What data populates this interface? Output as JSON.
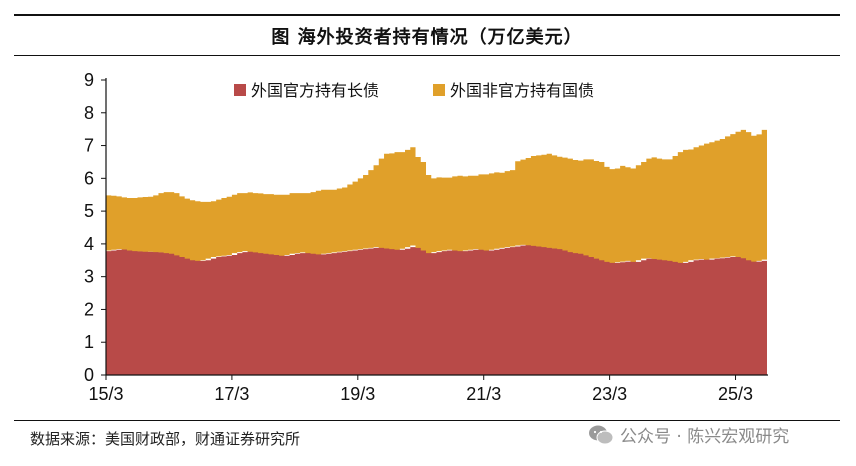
{
  "page": {
    "title": "图  海外投资者持有情况（万亿美元）"
  },
  "footer": {
    "source": "数据来源：美国财政部，财通证券研究所",
    "watermark": "公众号 · 陈兴宏观研究"
  },
  "chart_data": {
    "type": "area",
    "stacked": true,
    "title": "",
    "xlabel": "",
    "ylabel": "",
    "ylim": [
      0,
      9
    ],
    "yticks": [
      0,
      1,
      2,
      3,
      4,
      5,
      6,
      7,
      8,
      9
    ],
    "grid": false,
    "legend_position": "top",
    "x_tick_labels": [
      "15/3",
      "17/3",
      "19/3",
      "21/3",
      "23/3",
      "25/3"
    ],
    "x_tick_index": [
      0,
      24,
      48,
      72,
      96,
      120
    ],
    "series": [
      {
        "name": "外国官方持有长债",
        "color": "#B84A48",
        "values": [
          3.78,
          3.8,
          3.82,
          3.84,
          3.83,
          3.8,
          3.78,
          3.77,
          3.76,
          3.76,
          3.75,
          3.74,
          3.72,
          3.7,
          3.65,
          3.6,
          3.55,
          3.5,
          3.48,
          3.5,
          3.55,
          3.6,
          3.62,
          3.64,
          3.66,
          3.72,
          3.75,
          3.78,
          3.76,
          3.74,
          3.72,
          3.7,
          3.68,
          3.66,
          3.64,
          3.66,
          3.7,
          3.72,
          3.74,
          3.72,
          3.7,
          3.68,
          3.7,
          3.72,
          3.74,
          3.76,
          3.78,
          3.8,
          3.82,
          3.84,
          3.86,
          3.88,
          3.9,
          3.88,
          3.86,
          3.84,
          3.82,
          3.85,
          3.9,
          3.95,
          3.88,
          3.8,
          3.72,
          3.75,
          3.78,
          3.8,
          3.82,
          3.8,
          3.78,
          3.8,
          3.82,
          3.84,
          3.82,
          3.8,
          3.82,
          3.85,
          3.88,
          3.9,
          3.92,
          3.95,
          3.97,
          3.96,
          3.94,
          3.92,
          3.9,
          3.88,
          3.86,
          3.84,
          3.8,
          3.75,
          3.72,
          3.7,
          3.65,
          3.6,
          3.55,
          3.5,
          3.45,
          3.42,
          3.44,
          3.46,
          3.48,
          3.45,
          3.5,
          3.55,
          3.56,
          3.54,
          3.52,
          3.5,
          3.48,
          3.45,
          3.42,
          3.45,
          3.5,
          3.52,
          3.54,
          3.52,
          3.55,
          3.56,
          3.58,
          3.6,
          3.62,
          3.6,
          3.56,
          3.5,
          3.46,
          3.48,
          3.52
        ]
      },
      {
        "name": "外国非官方持有国债",
        "color": "#E0A02A",
        "values": [
          1.7,
          1.67,
          1.63,
          1.58,
          1.57,
          1.6,
          1.64,
          1.66,
          1.68,
          1.72,
          1.8,
          1.84,
          1.86,
          1.85,
          1.8,
          1.78,
          1.78,
          1.8,
          1.8,
          1.78,
          1.75,
          1.75,
          1.78,
          1.8,
          1.84,
          1.83,
          1.8,
          1.79,
          1.79,
          1.8,
          1.8,
          1.82,
          1.82,
          1.84,
          1.86,
          1.89,
          1.85,
          1.83,
          1.81,
          1.86,
          1.92,
          1.97,
          1.95,
          1.93,
          1.95,
          1.96,
          2.03,
          2.1,
          2.18,
          2.26,
          2.39,
          2.52,
          2.7,
          2.87,
          2.9,
          2.96,
          2.98,
          3.02,
          3.05,
          2.7,
          2.62,
          2.3,
          2.28,
          2.28,
          2.24,
          2.22,
          2.24,
          2.28,
          2.28,
          2.28,
          2.26,
          2.28,
          2.3,
          2.35,
          2.36,
          2.32,
          2.34,
          2.35,
          2.6,
          2.62,
          2.65,
          2.72,
          2.76,
          2.8,
          2.85,
          2.82,
          2.8,
          2.79,
          2.8,
          2.81,
          2.82,
          2.88,
          2.93,
          2.93,
          2.95,
          2.85,
          2.83,
          2.88,
          2.94,
          2.88,
          2.82,
          2.95,
          3.0,
          3.05,
          3.08,
          3.06,
          3.06,
          3.08,
          3.2,
          3.35,
          3.45,
          3.43,
          3.45,
          3.48,
          3.52,
          3.58,
          3.6,
          3.64,
          3.7,
          3.75,
          3.8,
          3.88,
          3.85,
          3.8,
          3.88,
          4.0,
          4.1
        ]
      }
    ]
  }
}
